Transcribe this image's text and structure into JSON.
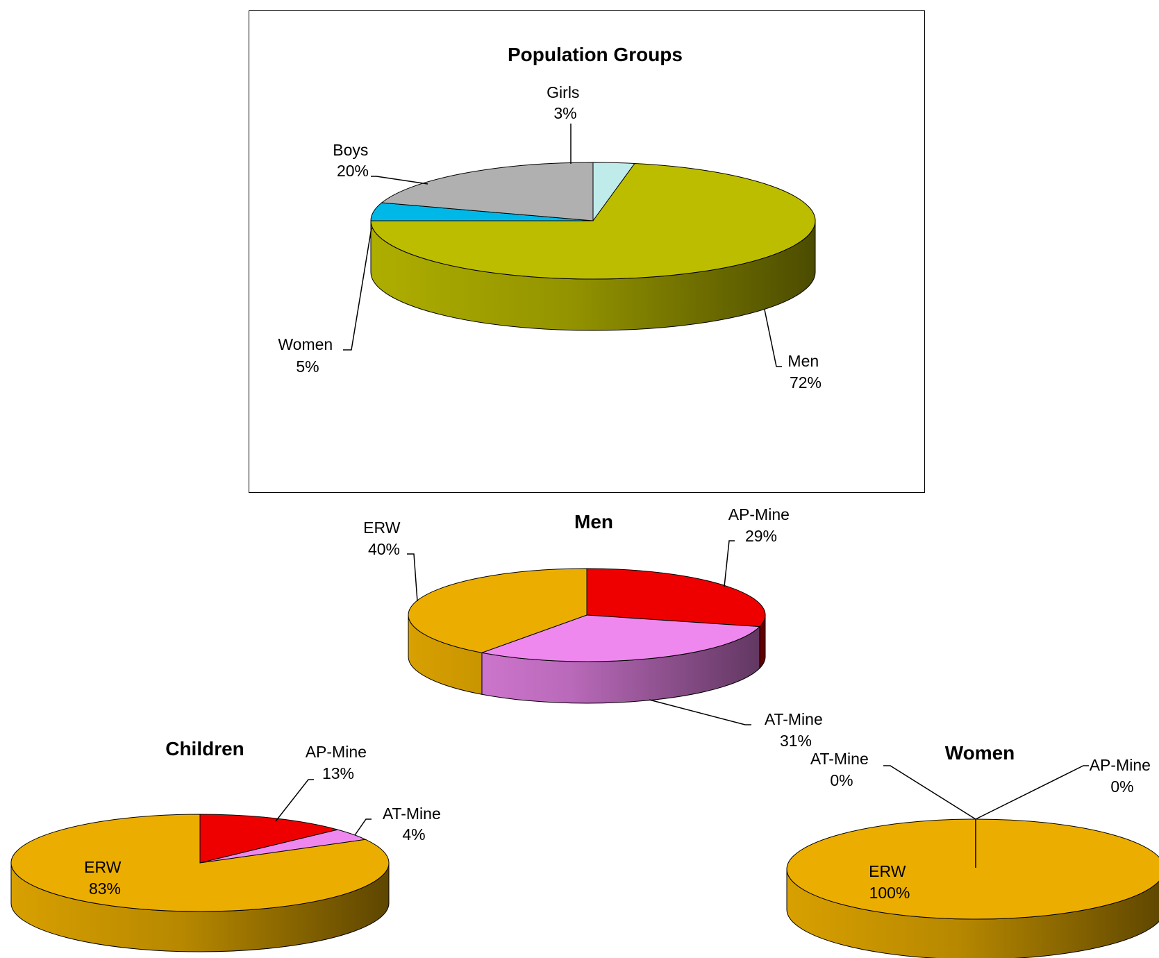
{
  "chart_data": [
    {
      "type": "pie",
      "title": "Population Groups",
      "slices": [
        {
          "label": "Girls",
          "value_label": "3%",
          "value": 3,
          "color": "#BFEBEB"
        },
        {
          "label": "Men",
          "value_label": "72%",
          "value": 72,
          "color": "#BDBD00"
        },
        {
          "label": "Women",
          "value_label": "5%",
          "value": 5,
          "color": "#00B8E8"
        },
        {
          "label": "Boys",
          "value_label": "20%",
          "value": 20,
          "color": "#B0B0B0"
        }
      ]
    },
    {
      "type": "pie",
      "title": "Men",
      "slices": [
        {
          "label": "AP-Mine",
          "value_label": "29%",
          "value": 29,
          "color": "#EE0000"
        },
        {
          "label": "AT-Mine",
          "value_label": "31%",
          "value": 31,
          "color": "#EE88EE"
        },
        {
          "label": "ERW",
          "value_label": "40%",
          "value": 40,
          "color": "#EBAE00"
        }
      ]
    },
    {
      "type": "pie",
      "title": "Children",
      "slices": [
        {
          "label": "AP-Mine",
          "value_label": "13%",
          "value": 13,
          "color": "#EE0000"
        },
        {
          "label": "AT-Mine",
          "value_label": "4%",
          "value": 4,
          "color": "#EE88EE"
        },
        {
          "label": "ERW",
          "value_label": "83%",
          "value": 83,
          "color": "#EBAE00"
        }
      ]
    },
    {
      "type": "pie",
      "title": "Women",
      "slices": [
        {
          "label": "AP-Mine",
          "value_label": "0%",
          "value": 0,
          "color": "#EE0000"
        },
        {
          "label": "AT-Mine",
          "value_label": "0%",
          "value": 0,
          "color": "#EE88EE"
        },
        {
          "label": "ERW",
          "value_label": "100%",
          "value": 100,
          "color": "#EBAE00"
        }
      ]
    }
  ]
}
